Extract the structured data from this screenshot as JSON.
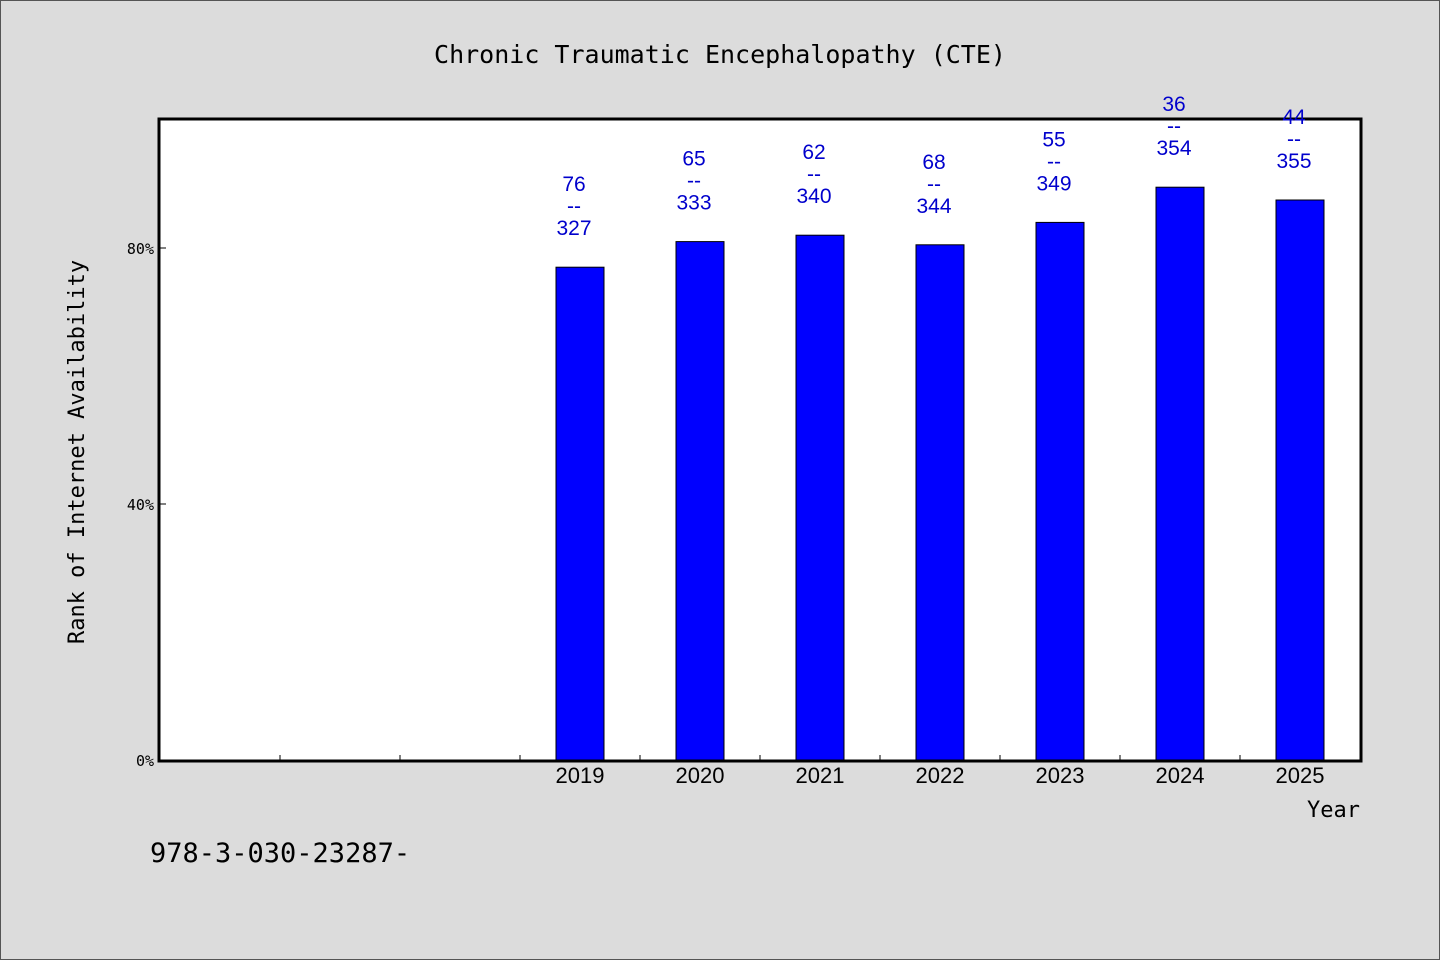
{
  "chart_data": {
    "type": "bar",
    "title": "Chronic Traumatic Encephalopathy (CTE)",
    "xlabel": "Year",
    "ylabel": "Rank of Internet Availability",
    "categories": [
      "",
      "",
      "",
      "2019",
      "2020",
      "2021",
      "2022",
      "2023",
      "2024",
      "2025"
    ],
    "values": [
      null,
      null,
      null,
      77,
      81,
      82,
      80.5,
      84,
      89.5,
      87.5
    ],
    "bar_labels": [
      null,
      null,
      null,
      {
        "top": "76",
        "sep": "--",
        "bottom": "327"
      },
      {
        "top": "65",
        "sep": "--",
        "bottom": "333"
      },
      {
        "top": "62",
        "sep": "--",
        "bottom": "340"
      },
      {
        "top": "68",
        "sep": "--",
        "bottom": "344"
      },
      {
        "top": "55",
        "sep": "--",
        "bottom": "349"
      },
      {
        "top": "36",
        "sep": "--",
        "bottom": "354"
      },
      {
        "top": "44",
        "sep": "--",
        "bottom": "355"
      }
    ],
    "ylim": [
      0,
      100
    ],
    "yticks": [
      0,
      40,
      80
    ],
    "ytick_labels": [
      "0%",
      "40%",
      "80%"
    ],
    "grid": false,
    "bar_color": "#0000ff",
    "label_color": "#0000cc"
  },
  "footer_text": "978-3-030-23287-"
}
